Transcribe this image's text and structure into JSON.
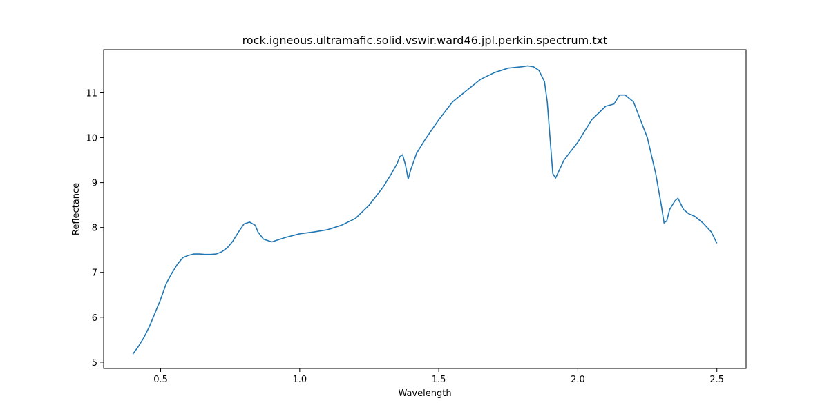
{
  "chart_data": {
    "type": "line",
    "title": "rock.igneous.ultramafic.solid.vswir.ward46.jpl.perkin.spectrum.txt",
    "xlabel": "Wavelength",
    "ylabel": "Reflectance",
    "xlim": [
      0.295,
      2.605
    ],
    "ylim": [
      4.86,
      11.96
    ],
    "xticks": [
      0.5,
      1.0,
      1.5,
      2.0,
      2.5
    ],
    "xtick_labels": [
      "0.5",
      "1.0",
      "1.5",
      "2.0",
      "2.5"
    ],
    "yticks": [
      5,
      6,
      7,
      8,
      9,
      10,
      11
    ],
    "ytick_labels": [
      "5",
      "6",
      "7",
      "8",
      "9",
      "10",
      "11"
    ],
    "grid": false,
    "series": [
      {
        "color": "#1f77b4",
        "x": [
          0.4,
          0.42,
          0.44,
          0.46,
          0.48,
          0.5,
          0.52,
          0.54,
          0.56,
          0.58,
          0.6,
          0.62,
          0.64,
          0.66,
          0.68,
          0.7,
          0.72,
          0.74,
          0.76,
          0.78,
          0.8,
          0.82,
          0.84,
          0.85,
          0.87,
          0.89,
          0.9,
          0.92,
          0.95,
          1.0,
          1.05,
          1.1,
          1.15,
          1.2,
          1.25,
          1.3,
          1.33,
          1.35,
          1.36,
          1.37,
          1.38,
          1.39,
          1.4,
          1.42,
          1.45,
          1.5,
          1.55,
          1.6,
          1.65,
          1.7,
          1.75,
          1.8,
          1.82,
          1.84,
          1.86,
          1.88,
          1.89,
          1.9,
          1.91,
          1.92,
          1.95,
          2.0,
          2.05,
          2.1,
          2.13,
          2.15,
          2.17,
          2.2,
          2.25,
          2.28,
          2.3,
          2.31,
          2.32,
          2.33,
          2.35,
          2.36,
          2.38,
          2.4,
          2.42,
          2.45,
          2.48,
          2.5
        ],
        "y": [
          5.18,
          5.35,
          5.55,
          5.8,
          6.1,
          6.4,
          6.75,
          6.98,
          7.18,
          7.33,
          7.38,
          7.41,
          7.41,
          7.4,
          7.4,
          7.41,
          7.46,
          7.55,
          7.7,
          7.9,
          8.08,
          8.12,
          8.05,
          7.9,
          7.74,
          7.7,
          7.68,
          7.72,
          7.78,
          7.86,
          7.9,
          7.95,
          8.05,
          8.2,
          8.5,
          8.9,
          9.2,
          9.42,
          9.58,
          9.62,
          9.4,
          9.08,
          9.3,
          9.65,
          9.95,
          10.4,
          10.8,
          11.05,
          11.3,
          11.45,
          11.55,
          11.58,
          11.6,
          11.58,
          11.5,
          11.25,
          10.8,
          10.0,
          9.2,
          9.1,
          9.5,
          9.9,
          10.4,
          10.7,
          10.75,
          10.95,
          10.95,
          10.8,
          10.0,
          9.2,
          8.5,
          8.1,
          8.15,
          8.4,
          8.6,
          8.65,
          8.4,
          8.3,
          8.25,
          8.1,
          7.9,
          7.65
        ]
      }
    ]
  }
}
